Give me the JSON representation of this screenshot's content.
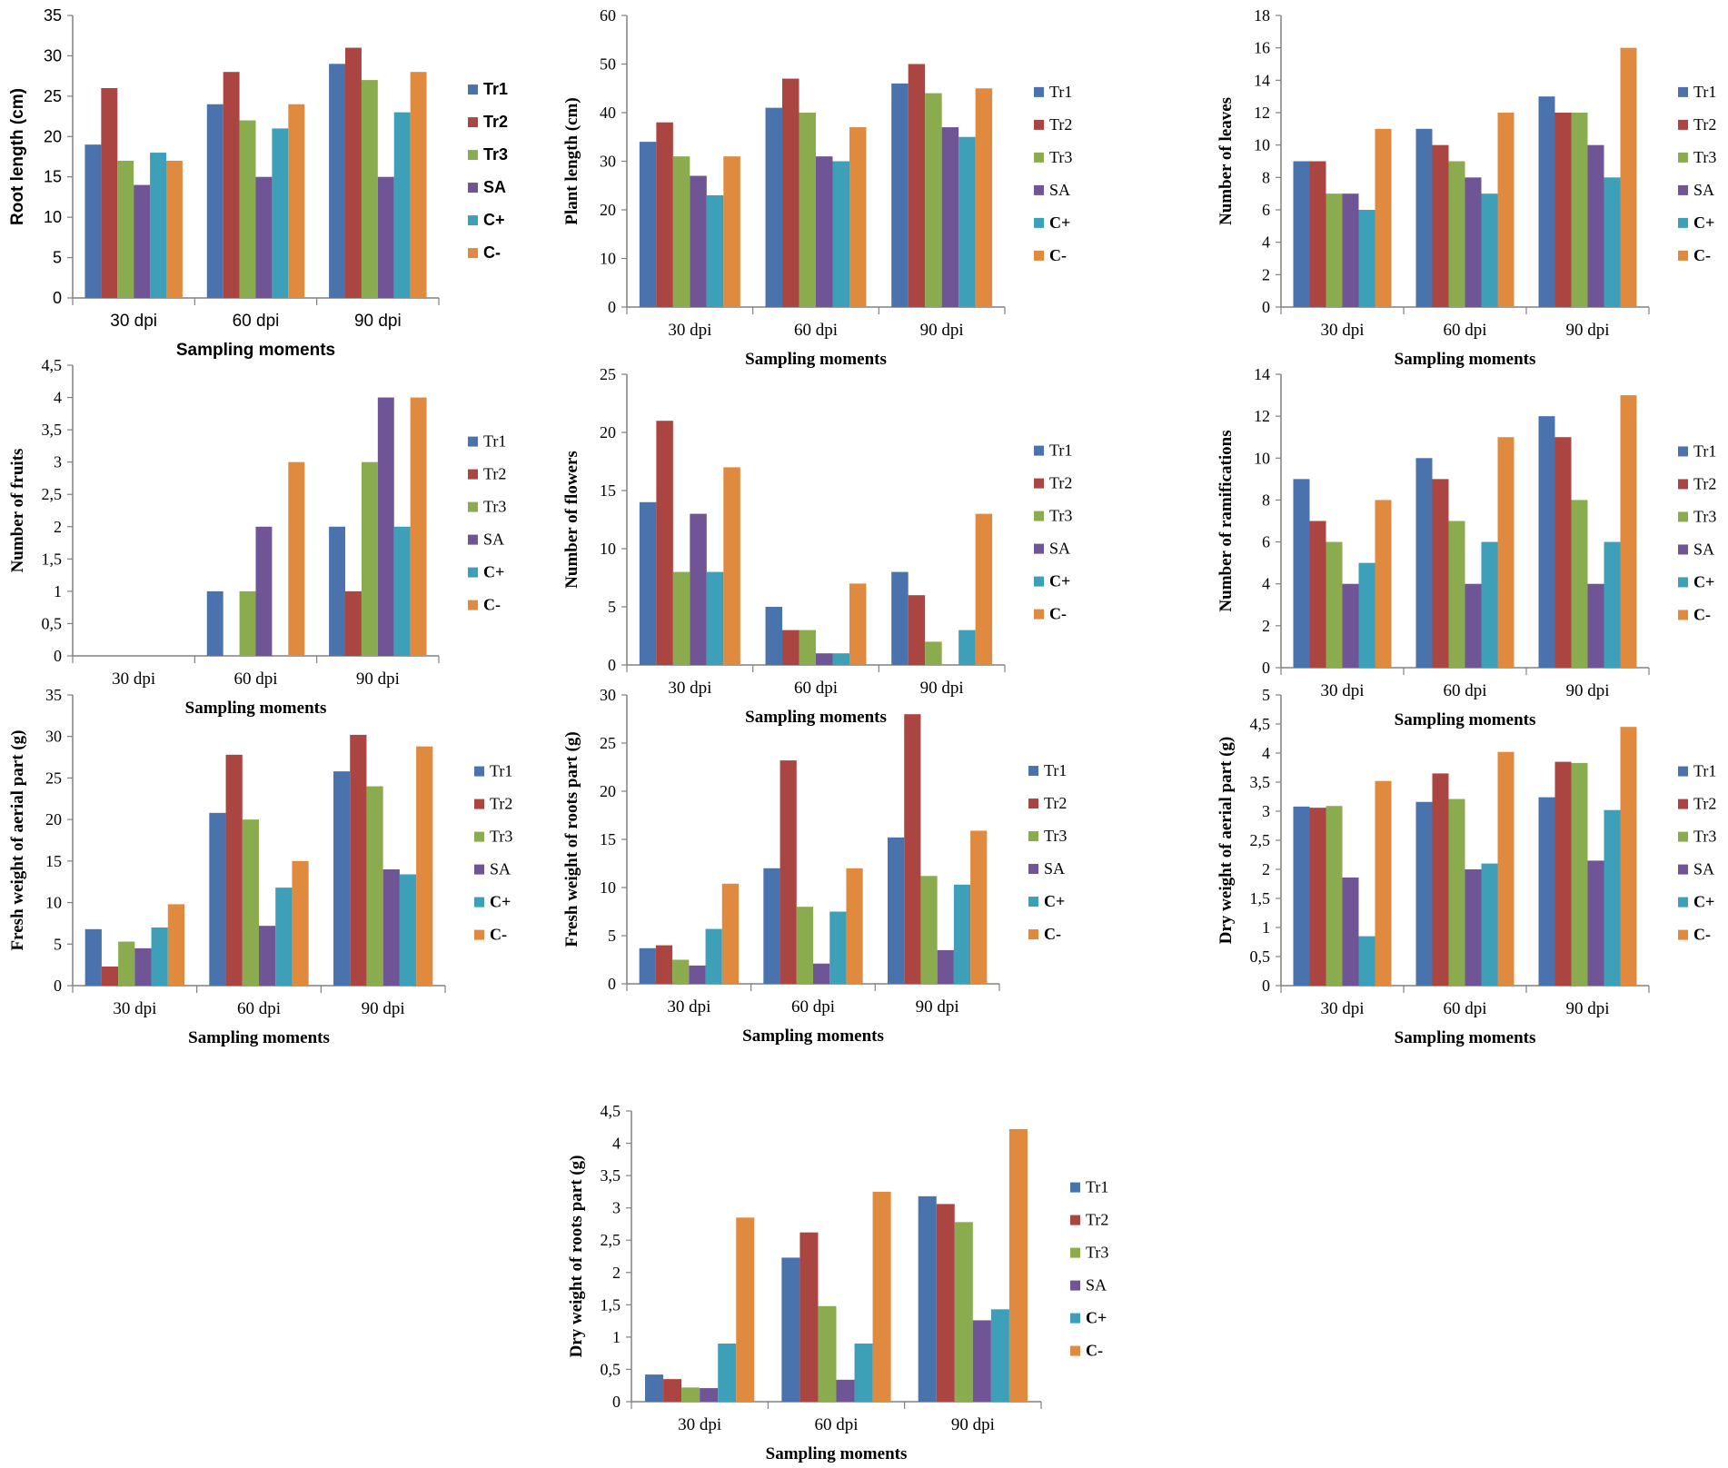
{
  "colors": {
    "Tr1": "#4a72ac",
    "Tr2": "#ab4542",
    "Tr3": "#8aac4e",
    "SA": "#6f5496",
    "C+": "#3d9fb8",
    "C-": "#df8a3f"
  },
  "chart_data": [
    {
      "type": "bar",
      "ylabel": "Root length (cm)",
      "xlabel": "Sampling moments",
      "categories": [
        "30 dpi",
        "60 dpi",
        "90 dpi"
      ],
      "ylim": [
        0,
        35
      ],
      "yticks": [
        "0",
        "5",
        "10",
        "15",
        "20",
        "25",
        "30",
        "35"
      ],
      "legend_position": "right",
      "series": [
        {
          "name": "Tr1",
          "values": [
            19,
            24,
            29
          ]
        },
        {
          "name": "Tr2",
          "values": [
            26,
            28,
            31
          ]
        },
        {
          "name": "Tr3",
          "values": [
            17,
            22,
            27
          ]
        },
        {
          "name": "SA",
          "values": [
            14,
            15,
            15
          ]
        },
        {
          "name": "C+",
          "values": [
            18,
            21,
            23
          ]
        },
        {
          "name": "C-",
          "values": [
            17,
            24,
            28
          ]
        }
      ]
    },
    {
      "type": "bar",
      "ylabel": "Plant length (cm)",
      "xlabel": "Sampling moments",
      "categories": [
        "30 dpi",
        "60 dpi",
        "90 dpi"
      ],
      "ylim": [
        0,
        60
      ],
      "yticks": [
        "0",
        "10",
        "20",
        "30",
        "40",
        "50",
        "60"
      ],
      "legend_position": "right",
      "series": [
        {
          "name": "Tr1",
          "values": [
            34,
            41,
            46
          ]
        },
        {
          "name": "Tr2",
          "values": [
            38,
            47,
            50
          ]
        },
        {
          "name": "Tr3",
          "values": [
            31,
            40,
            44
          ]
        },
        {
          "name": "SA",
          "values": [
            27,
            31,
            37
          ]
        },
        {
          "name": "C+",
          "values": [
            23,
            30,
            35
          ]
        },
        {
          "name": "C-",
          "values": [
            31,
            37,
            45
          ]
        }
      ]
    },
    {
      "type": "bar",
      "ylabel": "Number of leaves",
      "xlabel": "Sampling moments",
      "categories": [
        "30 dpi",
        "60 dpi",
        "90 dpi"
      ],
      "ylim": [
        0,
        18
      ],
      "yticks": [
        "0",
        "2",
        "4",
        "6",
        "8",
        "10",
        "12",
        "14",
        "16",
        "18"
      ],
      "legend_position": "right",
      "series": [
        {
          "name": "Tr1",
          "values": [
            9,
            11,
            13
          ]
        },
        {
          "name": "Tr2",
          "values": [
            9,
            10,
            12
          ]
        },
        {
          "name": "Tr3",
          "values": [
            7,
            9,
            12
          ]
        },
        {
          "name": "SA",
          "values": [
            7,
            8,
            10
          ]
        },
        {
          "name": "C+",
          "values": [
            6,
            7,
            8
          ]
        },
        {
          "name": "C-",
          "values": [
            11,
            12,
            16
          ]
        }
      ]
    },
    {
      "type": "bar",
      "ylabel": "Number of fruits",
      "xlabel": "Sampling moments",
      "categories": [
        "30 dpi",
        "60 dpi",
        "90 dpi"
      ],
      "ylim": [
        0,
        4.5
      ],
      "yticks": [
        "0",
        "0,5",
        "1",
        "1,5",
        "2",
        "2,5",
        "3",
        "3,5",
        "4",
        "4,5"
      ],
      "legend_position": "right",
      "series": [
        {
          "name": "Tr1",
          "values": [
            0,
            1,
            2
          ]
        },
        {
          "name": "Tr2",
          "values": [
            0,
            0,
            1
          ]
        },
        {
          "name": "Tr3",
          "values": [
            0,
            1,
            3
          ]
        },
        {
          "name": "SA",
          "values": [
            0,
            2,
            4
          ]
        },
        {
          "name": "C+",
          "values": [
            0,
            0,
            2
          ]
        },
        {
          "name": "C-",
          "values": [
            0,
            3,
            4
          ]
        }
      ]
    },
    {
      "type": "bar",
      "ylabel": "Number of flowers",
      "xlabel": "Sampling moments",
      "categories": [
        "30 dpi",
        "60 dpi",
        "90 dpi"
      ],
      "ylim": [
        0,
        25
      ],
      "yticks": [
        "0",
        "5",
        "10",
        "15",
        "20",
        "25"
      ],
      "legend_position": "right",
      "series": [
        {
          "name": "Tr1",
          "values": [
            14,
            5,
            8
          ]
        },
        {
          "name": "Tr2",
          "values": [
            21,
            3,
            6
          ]
        },
        {
          "name": "Tr3",
          "values": [
            8,
            3,
            2
          ]
        },
        {
          "name": "SA",
          "values": [
            13,
            1,
            0
          ]
        },
        {
          "name": "C+",
          "values": [
            8,
            1,
            3
          ]
        },
        {
          "name": "C-",
          "values": [
            17,
            7,
            13
          ]
        }
      ]
    },
    {
      "type": "bar",
      "ylabel": "Number of ramifications",
      "xlabel": "Sampling moments",
      "categories": [
        "30 dpi",
        "60 dpi",
        "90 dpi"
      ],
      "ylim": [
        0,
        14
      ],
      "yticks": [
        "0",
        "2",
        "4",
        "6",
        "8",
        "10",
        "12",
        "14"
      ],
      "legend_position": "right",
      "series": [
        {
          "name": "Tr1",
          "values": [
            9,
            10,
            12
          ]
        },
        {
          "name": "Tr2",
          "values": [
            7,
            9,
            11
          ]
        },
        {
          "name": "Tr3",
          "values": [
            6,
            7,
            8
          ]
        },
        {
          "name": "SA",
          "values": [
            4,
            4,
            4
          ]
        },
        {
          "name": "C+",
          "values": [
            5,
            6,
            6
          ]
        },
        {
          "name": "C-",
          "values": [
            8,
            11,
            13
          ]
        }
      ]
    },
    {
      "type": "bar",
      "ylabel": "Fresh weight of aerial part (g)",
      "xlabel": "Sampling moments",
      "categories": [
        "30 dpi",
        "60 dpi",
        "90 dpi"
      ],
      "ylim": [
        0,
        35
      ],
      "yticks": [
        "0",
        "5",
        "10",
        "15",
        "20",
        "25",
        "30",
        "35"
      ],
      "legend_position": "right",
      "series": [
        {
          "name": "Tr1",
          "values": [
            6.8,
            20.8,
            25.8
          ]
        },
        {
          "name": "Tr2",
          "values": [
            2.3,
            27.8,
            30.2
          ]
        },
        {
          "name": "Tr3",
          "values": [
            5.3,
            20,
            24
          ]
        },
        {
          "name": "SA",
          "values": [
            4.5,
            7.2,
            14
          ]
        },
        {
          "name": "C+",
          "values": [
            7,
            11.8,
            13.4
          ]
        },
        {
          "name": "C-",
          "values": [
            9.8,
            15,
            28.8
          ]
        }
      ]
    },
    {
      "type": "bar",
      "ylabel": "Fresh weight of roots part (g)",
      "xlabel": "Sampling moments",
      "categories": [
        "30 dpi",
        "60 dpi",
        "90 dpi"
      ],
      "ylim": [
        0,
        30
      ],
      "yticks": [
        "0",
        "5",
        "10",
        "15",
        "20",
        "25",
        "30"
      ],
      "legend_position": "right",
      "series": [
        {
          "name": "Tr1",
          "values": [
            3.7,
            12,
            15.2
          ]
        },
        {
          "name": "Tr2",
          "values": [
            4,
            23.2,
            28
          ]
        },
        {
          "name": "Tr3",
          "values": [
            2.5,
            8,
            11.2
          ]
        },
        {
          "name": "SA",
          "values": [
            1.9,
            2.1,
            3.5
          ]
        },
        {
          "name": "C+",
          "values": [
            5.7,
            7.5,
            10.3
          ]
        },
        {
          "name": "C-",
          "values": [
            10.4,
            12,
            15.9
          ]
        }
      ]
    },
    {
      "type": "bar",
      "ylabel": "Dry weight of aerial part (g)",
      "xlabel": "Sampling moments",
      "categories": [
        "30 dpi",
        "60 dpi",
        "90 dpi"
      ],
      "ylim": [
        0,
        5
      ],
      "yticks": [
        "0",
        "0,5",
        "1",
        "1,5",
        "2",
        "2,5",
        "3",
        "3,5",
        "4",
        "4,5",
        "5"
      ],
      "legend_position": "right",
      "series": [
        {
          "name": "Tr1",
          "values": [
            3.08,
            3.16,
            3.24
          ]
        },
        {
          "name": "Tr2",
          "values": [
            3.06,
            3.65,
            3.85
          ]
        },
        {
          "name": "Tr3",
          "values": [
            3.09,
            3.21,
            3.83
          ]
        },
        {
          "name": "SA",
          "values": [
            1.86,
            2,
            2.15
          ]
        },
        {
          "name": "C+",
          "values": [
            0.85,
            2.1,
            3.02
          ]
        },
        {
          "name": "C-",
          "values": [
            3.52,
            4.02,
            4.45
          ]
        }
      ]
    },
    {
      "type": "bar",
      "ylabel": "Dry weight of roots part (g)",
      "xlabel": "Sampling moments",
      "categories": [
        "30 dpi",
        "60 dpi",
        "90 dpi"
      ],
      "ylim": [
        0,
        4.5
      ],
      "yticks": [
        "0",
        "0,5",
        "1",
        "1,5",
        "2",
        "2,5",
        "3",
        "3,5",
        "4",
        "4,5"
      ],
      "legend_position": "right",
      "series": [
        {
          "name": "Tr1",
          "values": [
            0.42,
            2.23,
            3.18
          ]
        },
        {
          "name": "Tr2",
          "values": [
            0.35,
            2.62,
            3.06
          ]
        },
        {
          "name": "Tr3",
          "values": [
            0.22,
            1.48,
            2.78
          ]
        },
        {
          "name": "SA",
          "values": [
            0.21,
            0.34,
            1.26
          ]
        },
        {
          "name": "C+",
          "values": [
            0.9,
            0.9,
            1.43
          ]
        },
        {
          "name": "C-",
          "values": [
            2.85,
            3.25,
            4.22
          ]
        }
      ]
    }
  ]
}
